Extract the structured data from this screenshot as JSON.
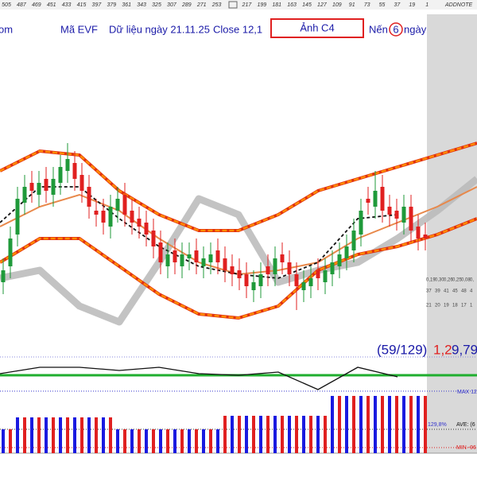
{
  "toolbar": {
    "ruler": [
      "505",
      "487",
      "469",
      "451",
      "433",
      "415",
      "397",
      "379",
      "361",
      "343",
      "325",
      "307",
      "289",
      "271",
      "253",
      "217",
      "199",
      "181",
      "163",
      "145",
      "127",
      "109",
      "91",
      "73",
      "55",
      "37",
      "19",
      "1"
    ],
    "addnote": "ADDNOTE"
  },
  "header": {
    "left_cut": "om",
    "symbol": "Mã EVF",
    "date": "Dữ liệu ngày 21.11.25",
    "close": "Close 12,1",
    "image_button": "Ảnh C4",
    "candles_prefix": "Nến",
    "candles_count": "6",
    "candles_suffix": "ngày"
  },
  "side": {
    "row1": [
      "0,19",
      "0,30",
      "0,26",
      "0,25",
      "0,08",
      "0,"
    ],
    "row2": [
      "37",
      "39",
      "41",
      "45",
      "48",
      "4"
    ],
    "row3": [
      "21",
      "20",
      "19",
      "18",
      "17",
      "1"
    ]
  },
  "chart_data": [
    {
      "type": "candlestick",
      "ylim": [
        9.3,
        17.3
      ],
      "up_color": "#1f9a3a",
      "down_color": "#e02020",
      "open": [
        11.0,
        11.4,
        12.2,
        13.0,
        13.5,
        13.2,
        13.6,
        13.2,
        13.5,
        13.8,
        14.0,
        13.7,
        13.4,
        12.8,
        12.8,
        12.4,
        12.8,
        13.2,
        12.8,
        12.6,
        12.5,
        12.3,
        12.0,
        11.4,
        11.8,
        11.4,
        11.6,
        11.8,
        11.4,
        11.5,
        11.8,
        11.6,
        11.4,
        11.3,
        11.2,
        10.8,
        10.9,
        11.4,
        11.2,
        11.7,
        11.5,
        11.2,
        10.8,
        10.9,
        11.3,
        11.0,
        11.2,
        11.4,
        11.6,
        11.8,
        12.2,
        13.1,
        12.9,
        13.4,
        12.9,
        12.8,
        12.5,
        12.9,
        12.4,
        12.2
      ],
      "high": [
        11.6,
        12.4,
        13.4,
        13.7,
        13.8,
        13.8,
        13.9,
        13.9,
        14.2,
        14.5,
        14.3,
        14.0,
        13.7,
        13.1,
        13.1,
        13.2,
        13.4,
        13.5,
        13.1,
        12.9,
        12.8,
        12.6,
        12.3,
        12.0,
        12.1,
        12.0,
        12.0,
        12.1,
        11.9,
        12.0,
        12.1,
        11.9,
        11.7,
        11.6,
        11.5,
        11.3,
        11.5,
        11.7,
        11.9,
        12.0,
        11.8,
        11.5,
        11.3,
        11.4,
        11.6,
        11.6,
        11.8,
        12.0,
        12.2,
        12.6,
        13.1,
        13.4,
        13.8,
        13.7,
        13.2,
        13.1,
        13.2,
        13.2,
        12.7,
        12.5
      ],
      "low": [
        10.7,
        11.1,
        11.9,
        12.7,
        13.0,
        12.9,
        13.0,
        12.9,
        13.2,
        13.5,
        13.3,
        13.0,
        12.6,
        12.4,
        12.2,
        12.1,
        12.5,
        12.4,
        12.2,
        12.1,
        11.9,
        11.6,
        11.2,
        11.1,
        11.2,
        11.1,
        11.3,
        11.2,
        11.1,
        11.2,
        11.2,
        11.0,
        10.9,
        10.8,
        10.6,
        10.5,
        10.6,
        10.9,
        10.9,
        11.2,
        10.9,
        10.3,
        10.5,
        10.6,
        10.8,
        10.7,
        10.9,
        11.1,
        11.3,
        11.5,
        11.9,
        12.7,
        12.6,
        12.5,
        12.4,
        12.3,
        12.2,
        12.0,
        11.8,
        11.8
      ],
      "close": [
        11.3,
        12.1,
        13.1,
        13.4,
        13.3,
        13.5,
        13.3,
        13.6,
        13.9,
        14.1,
        13.6,
        13.3,
        12.9,
        12.7,
        12.5,
        12.9,
        13.1,
        12.7,
        12.5,
        12.4,
        12.2,
        11.9,
        11.5,
        11.7,
        11.5,
        11.7,
        11.7,
        11.5,
        11.6,
        11.7,
        11.5,
        11.3,
        11.2,
        11.1,
        10.9,
        11.0,
        11.2,
        11.2,
        11.6,
        11.5,
        11.2,
        10.9,
        11.0,
        11.1,
        11.1,
        11.3,
        11.5,
        11.7,
        11.9,
        12.3,
        12.8,
        13.0,
        13.3,
        12.8,
        12.7,
        12.6,
        12.9,
        12.3,
        12.1,
        12.1
      ],
      "overlays": [
        {
          "color": "#b8b8b8",
          "style": "cloud",
          "values": [
            11.1,
            11.3,
            10.4,
            10.0,
            11.5,
            13.1,
            12.7,
            11.0,
            11.3,
            11.5,
            12.1,
            12.8,
            13.6
          ]
        },
        {
          "color": "#ff8c00",
          "style": "band",
          "values": [
            13.8,
            14.3,
            14.2,
            13.3,
            12.7,
            12.3,
            12.3,
            12.7,
            13.3,
            13.6,
            13.9,
            14.2,
            14.5
          ]
        },
        {
          "color": "#ff8c00",
          "style": "band",
          "values": [
            11.5,
            12.1,
            12.1,
            11.4,
            10.7,
            10.2,
            10.1,
            10.4,
            11.3,
            11.7,
            11.9,
            12.2,
            12.6
          ]
        },
        {
          "color": "#e8884a",
          "style": "solid",
          "values": [
            12.4,
            12.9,
            13.2,
            12.8,
            12.1,
            11.5,
            11.2,
            11.3,
            11.5,
            12.1,
            12.5,
            12.9,
            13.4
          ]
        },
        {
          "color": "#111111",
          "style": "dashed",
          "values": [
            12.5,
            13.4,
            13.4,
            12.6,
            11.9,
            11.4,
            11.2,
            11.1,
            11.5,
            12.6,
            12.7,
            null,
            null
          ]
        }
      ]
    },
    {
      "type": "line",
      "ylim": [
        -28,
        27
      ],
      "color": "#111111",
      "values": [
        2,
        10,
        10,
        6,
        10,
        2,
        0,
        4,
        -18,
        10,
        -2,
        null,
        null
      ],
      "annotation": [
        "(59/129)",
        "1,2",
        "9,79"
      ]
    },
    {
      "type": "bar",
      "ylim": [
        0,
        80
      ],
      "colors": [
        "#1a1ae0",
        "#e02020"
      ],
      "values": [
        30,
        30,
        45,
        45,
        45,
        45,
        45,
        45,
        45,
        45,
        45,
        45,
        45,
        45,
        45,
        45,
        30,
        30,
        30,
        30,
        30,
        30,
        30,
        30,
        30,
        30,
        30,
        30,
        30,
        30,
        30,
        47,
        47,
        47,
        47,
        47,
        47,
        47,
        47,
        47,
        47,
        47,
        47,
        47,
        47,
        47,
        72,
        72,
        72,
        72,
        72,
        72,
        72,
        72,
        72,
        72,
        72,
        72,
        72,
        72
      ],
      "labels": {
        "max": "MAX 12",
        "ave": "AVE: (6",
        "min": "MIN -96",
        "pct": "129,8%"
      }
    }
  ]
}
